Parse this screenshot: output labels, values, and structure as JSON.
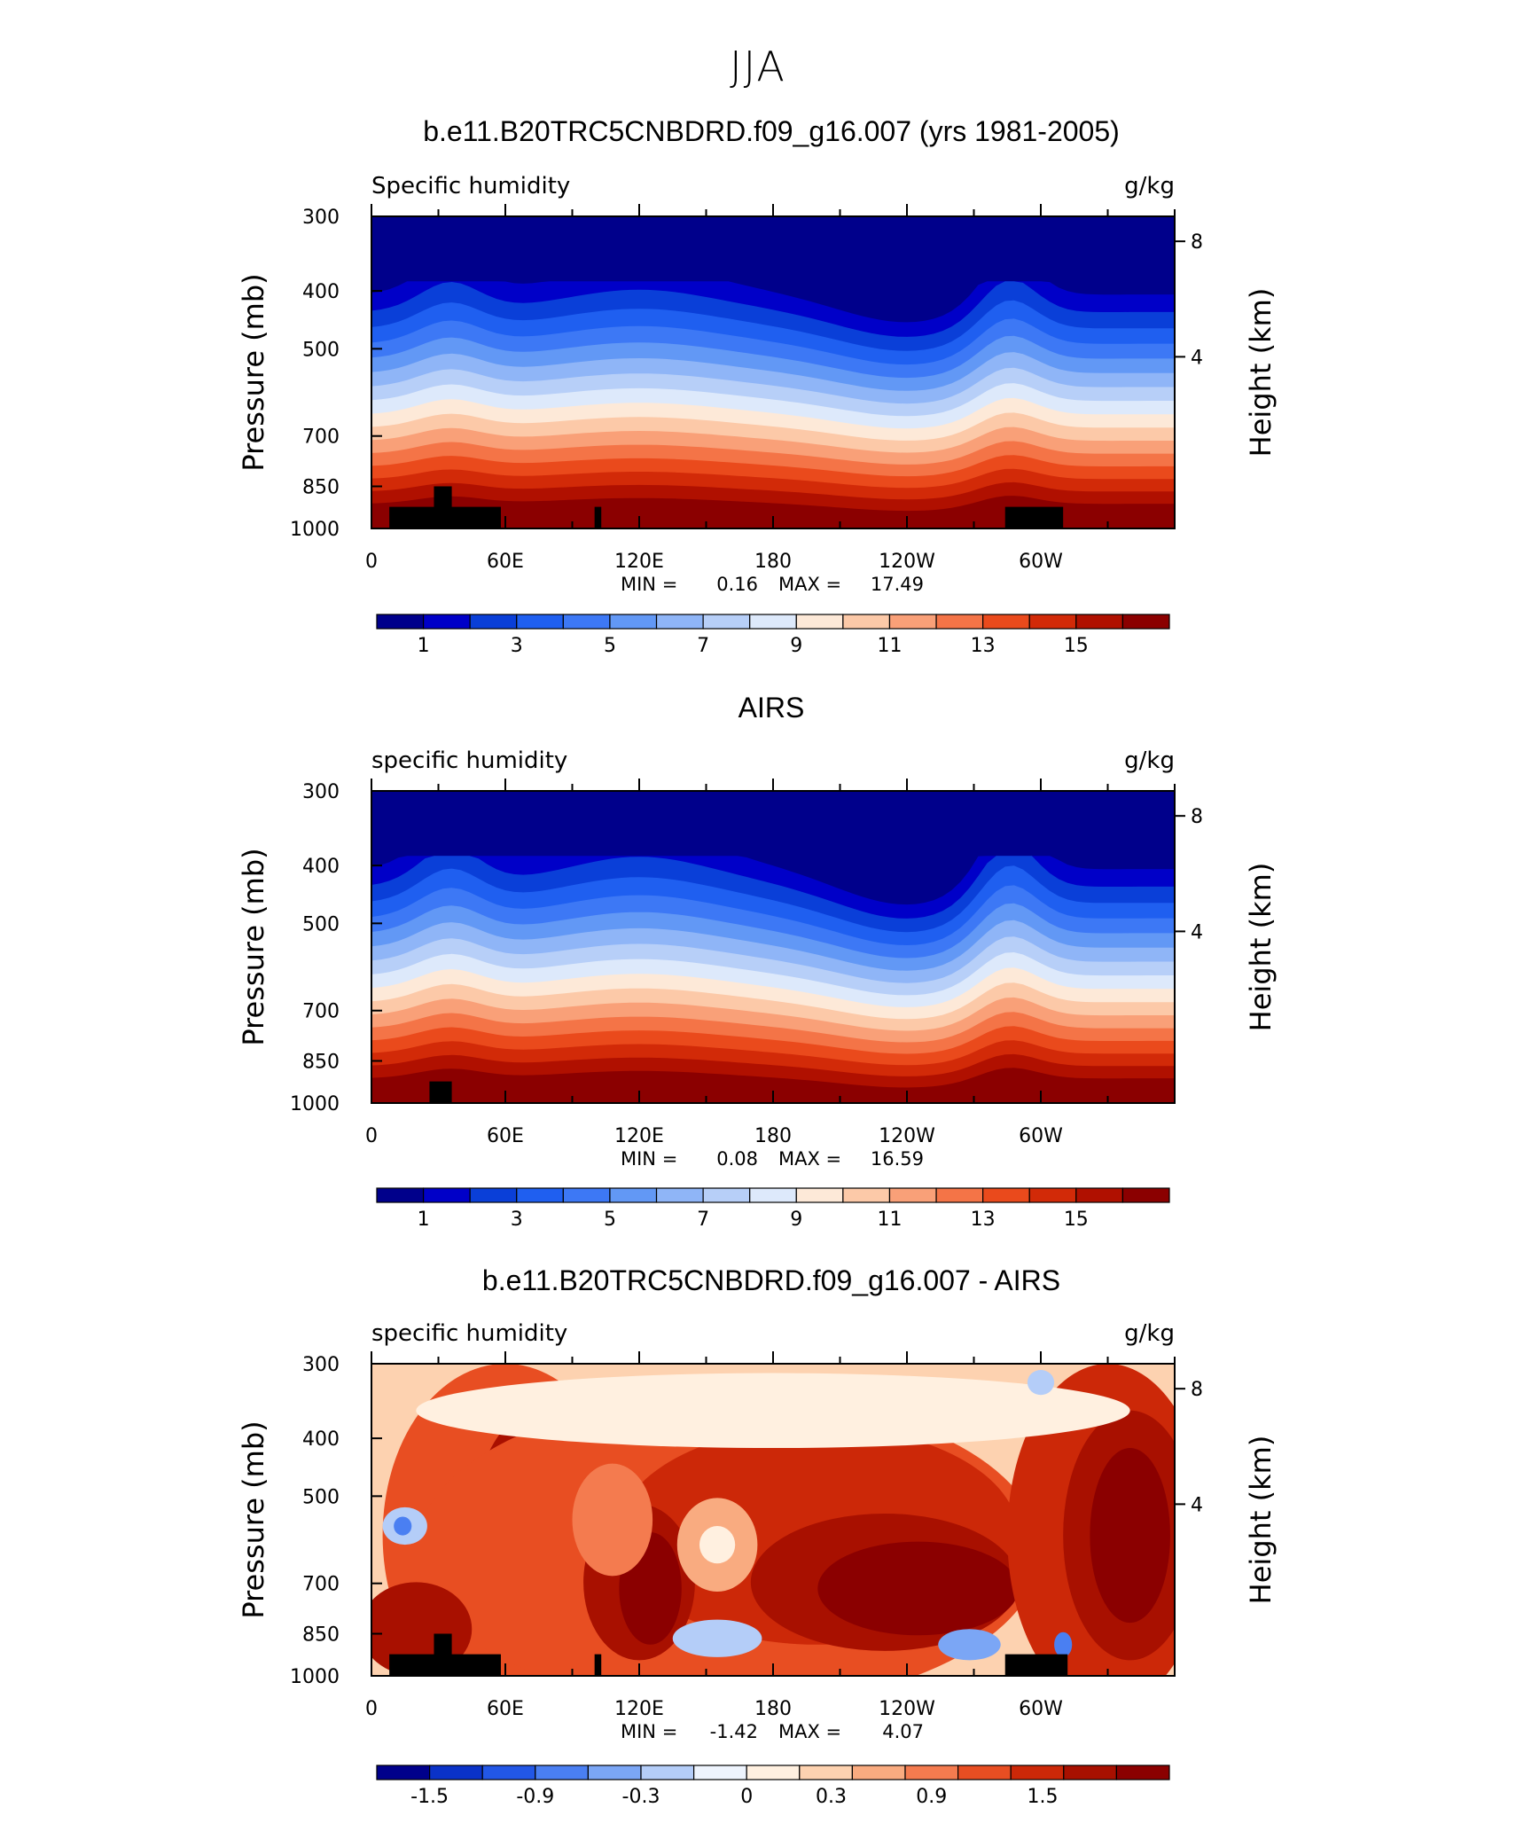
{
  "main_title": "JJA",
  "panels": [
    {
      "title": "b.e11.B20TRC5CNBDRD.f09_g16.007 (yrs 1981-2005)",
      "left_label": "Specific humidity",
      "right_label": "g/kg",
      "min_label": "MIN =",
      "min_value": "0.16",
      "max_label": "MAX =",
      "max_value": "17.49",
      "cb_labels": [
        "1",
        "3",
        "5",
        "7",
        "9",
        "11",
        "13",
        "15"
      ]
    },
    {
      "title": "AIRS",
      "left_label": "specific humidity",
      "right_label": "g/kg",
      "min_label": "MIN =",
      "min_value": "0.08",
      "max_label": "MAX =",
      "max_value": "16.59",
      "cb_labels": [
        "1",
        "3",
        "5",
        "7",
        "9",
        "11",
        "13",
        "15"
      ]
    },
    {
      "title": "b.e11.B20TRC5CNBDRD.f09_g16.007 - AIRS",
      "left_label": "specific humidity",
      "right_label": "g/kg",
      "min_label": "MIN =",
      "min_value": "-1.42",
      "max_label": "MAX =",
      "max_value": "4.07",
      "cb_labels": [
        "-1.5",
        "-0.9",
        "-0.3",
        "0",
        "0.3",
        "0.9",
        "1.5"
      ]
    }
  ],
  "axes": {
    "y_left_label": "Pressure (mb)",
    "y_right_label": "Height (km)",
    "y_ticks": [
      "300",
      "400",
      "500",
      "700",
      "850",
      "1000"
    ],
    "y_right_ticks": [
      "8",
      "4"
    ],
    "x_ticks": [
      "0",
      "60E",
      "120E",
      "180",
      "120W",
      "60W"
    ]
  },
  "chart_data": [
    {
      "type": "heatmap",
      "title": "b.e11.B20TRC5CNBDRD.f09_g16.007 (yrs 1981-2005)",
      "variable": "Specific humidity",
      "units": "g/kg",
      "xlabel": "",
      "ylabel": "Pressure (mb)",
      "y2label": "Height (km)",
      "x_ticks": [
        "0",
        "60E",
        "120E",
        "180",
        "120W",
        "60W"
      ],
      "y_ticks": [
        300,
        400,
        500,
        700,
        850,
        1000
      ],
      "y2_ticks": [
        8,
        4
      ],
      "log_y": true,
      "min": 0.16,
      "max": 17.49,
      "colorbar_levels": [
        0,
        1,
        2,
        3,
        4,
        5,
        6,
        7,
        8,
        9,
        10,
        11,
        12,
        13,
        14,
        15,
        16
      ],
      "colorbar_labels": [
        1,
        3,
        5,
        7,
        9,
        11,
        13,
        15
      ],
      "colors": [
        "#00008b",
        "#0000c8",
        "#0a3fd8",
        "#1f5ff0",
        "#3d78f5",
        "#6298f5",
        "#8fb5f7",
        "#b7cff8",
        "#dde9fb",
        "#fde9d8",
        "#fcc9a8",
        "#f9a078",
        "#f47447",
        "#ea4a1c",
        "#d22a08",
        "#b01000",
        "#8b0000"
      ]
    },
    {
      "type": "heatmap",
      "title": "AIRS",
      "variable": "specific humidity",
      "units": "g/kg",
      "xlabel": "",
      "ylabel": "Pressure (mb)",
      "y2label": "Height (km)",
      "x_ticks": [
        "0",
        "60E",
        "120E",
        "180",
        "120W",
        "60W"
      ],
      "y_ticks": [
        300,
        400,
        500,
        700,
        850,
        1000
      ],
      "y2_ticks": [
        8,
        4
      ],
      "log_y": true,
      "min": 0.08,
      "max": 16.59,
      "colorbar_levels": [
        0,
        1,
        2,
        3,
        4,
        5,
        6,
        7,
        8,
        9,
        10,
        11,
        12,
        13,
        14,
        15,
        16
      ],
      "colorbar_labels": [
        1,
        3,
        5,
        7,
        9,
        11,
        13,
        15
      ]
    },
    {
      "type": "heatmap",
      "title": "b.e11.B20TRC5CNBDRD.f09_g16.007 - AIRS",
      "variable": "specific humidity",
      "units": "g/kg",
      "xlabel": "",
      "ylabel": "Pressure (mb)",
      "y2label": "Height (km)",
      "x_ticks": [
        "0",
        "60E",
        "120E",
        "180",
        "120W",
        "60W"
      ],
      "y_ticks": [
        300,
        400,
        500,
        700,
        850,
        1000
      ],
      "y2_ticks": [
        8,
        4
      ],
      "log_y": true,
      "min": -1.42,
      "max": 4.07,
      "colorbar_levels": [
        -1.8,
        -1.5,
        -1.2,
        -0.9,
        -0.6,
        -0.3,
        -0.1,
        0,
        0.1,
        0.3,
        0.6,
        0.9,
        1.2,
        1.5,
        1.8,
        2.1
      ],
      "colorbar_labels": [
        -1.5,
        -0.9,
        -0.3,
        0,
        0.3,
        0.9,
        1.5
      ]
    }
  ]
}
